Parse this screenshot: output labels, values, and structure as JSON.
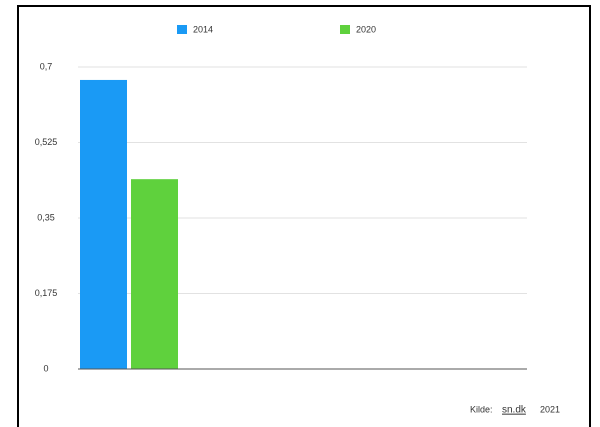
{
  "chart_data": {
    "type": "bar",
    "categories": [
      null
    ],
    "series": [
      {
        "name": "2014",
        "color": "#1a9af5",
        "values": [
          0.67
        ]
      },
      {
        "name": "2020",
        "color": "#5fd13d",
        "values": [
          0.44
        ]
      }
    ],
    "ylim": [
      0,
      0.7
    ],
    "yticks": [
      0,
      {
        "value": 0.175,
        "label": "0,175"
      },
      {
        "value": 0.35,
        "label": "0,35"
      },
      {
        "value": 0.525,
        "label": "0,525"
      },
      {
        "value": 0.7,
        "label": "0,7"
      }
    ],
    "grid": true,
    "legend": "top",
    "source": [
      "Kilde:",
      "sn.dk",
      "2021"
    ]
  }
}
